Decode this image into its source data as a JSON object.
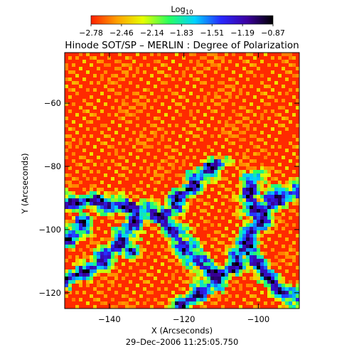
{
  "chart_data": {
    "type": "heatmap",
    "title": "Hinode SOT/SP – MERLIN : Degree of Polarization",
    "subtitle": "29–Dec–2006 11:25:05.750",
    "xlabel": "X (Arcseconds)",
    "ylabel": "Y (Arcseconds)",
    "xlim": [
      -152,
      -89
    ],
    "ylim": [
      -125,
      -44
    ],
    "x_ticks": [
      -140,
      -120,
      -100
    ],
    "x_tick_labels": [
      "−140",
      "−120",
      "−100"
    ],
    "y_ticks": [
      -60,
      -80,
      -100,
      -120
    ],
    "y_tick_labels": [
      "−60",
      "−80",
      "−100",
      "−120"
    ],
    "colorbar": {
      "title": "Log",
      "title_subscript": "10",
      "min": -2.78,
      "max": -0.87,
      "ticks": [
        -2.78,
        -2.46,
        -2.14,
        -1.83,
        -1.51,
        -1.19,
        -0.87
      ],
      "tick_labels": [
        "−2.78",
        "−2.46",
        "−2.14",
        "−1.83",
        "−1.51",
        "−1.19",
        "−0.87"
      ],
      "colormap": [
        "#ff2000",
        "#ffa000",
        "#e6ff00",
        "#28ff60",
        "#00d2ff",
        "#2828ff",
        "#3c00a0",
        "#000000"
      ]
    },
    "grid": false,
    "legend": "none",
    "network_path": [
      [
        -152,
        -92
      ],
      [
        -146,
        -91
      ],
      [
        -140,
        -92
      ],
      [
        -134,
        -93
      ],
      [
        -128,
        -95
      ],
      [
        -123,
        -99
      ],
      [
        -119,
        -106
      ],
      [
        -115,
        -112
      ],
      [
        -110,
        -115
      ],
      [
        -106,
        -111
      ],
      [
        -103,
        -104
      ],
      [
        -100,
        -98
      ],
      [
        -97,
        -93
      ],
      [
        -94,
        -89
      ],
      [
        -90,
        -88
      ]
    ],
    "network_branches": [
      [
        [
          -126,
          -96
        ],
        [
          -121,
          -90
        ],
        [
          -116,
          -84
        ],
        [
          -111,
          -79
        ]
      ],
      [
        [
          -104,
          -106
        ],
        [
          -100,
          -112
        ],
        [
          -95,
          -118
        ],
        [
          -90,
          -122
        ]
      ],
      [
        [
          -132,
          -94
        ],
        [
          -135,
          -101
        ],
        [
          -140,
          -108
        ],
        [
          -146,
          -113
        ],
        [
          -152,
          -116
        ]
      ],
      [
        [
          -110,
          -115
        ],
        [
          -116,
          -120
        ],
        [
          -121,
          -125
        ]
      ],
      [
        [
          -147,
          -98
        ],
        [
          -151,
          -103
        ]
      ],
      [
        [
          -100,
          -98
        ],
        [
          -103,
          -90
        ],
        [
          -101,
          -84
        ]
      ]
    ],
    "strong_knots": [
      [
        -97,
        -90
      ],
      [
        -95,
        -89.5
      ],
      [
        -128,
        -95.5
      ],
      [
        -140,
        -92.5
      ],
      [
        -112,
        -114.5
      ],
      [
        -106,
        -111
      ],
      [
        -120,
        -107
      ],
      [
        -146,
        -113
      ],
      [
        -104,
        -104
      ],
      [
        -134,
        -107
      ]
    ]
  }
}
